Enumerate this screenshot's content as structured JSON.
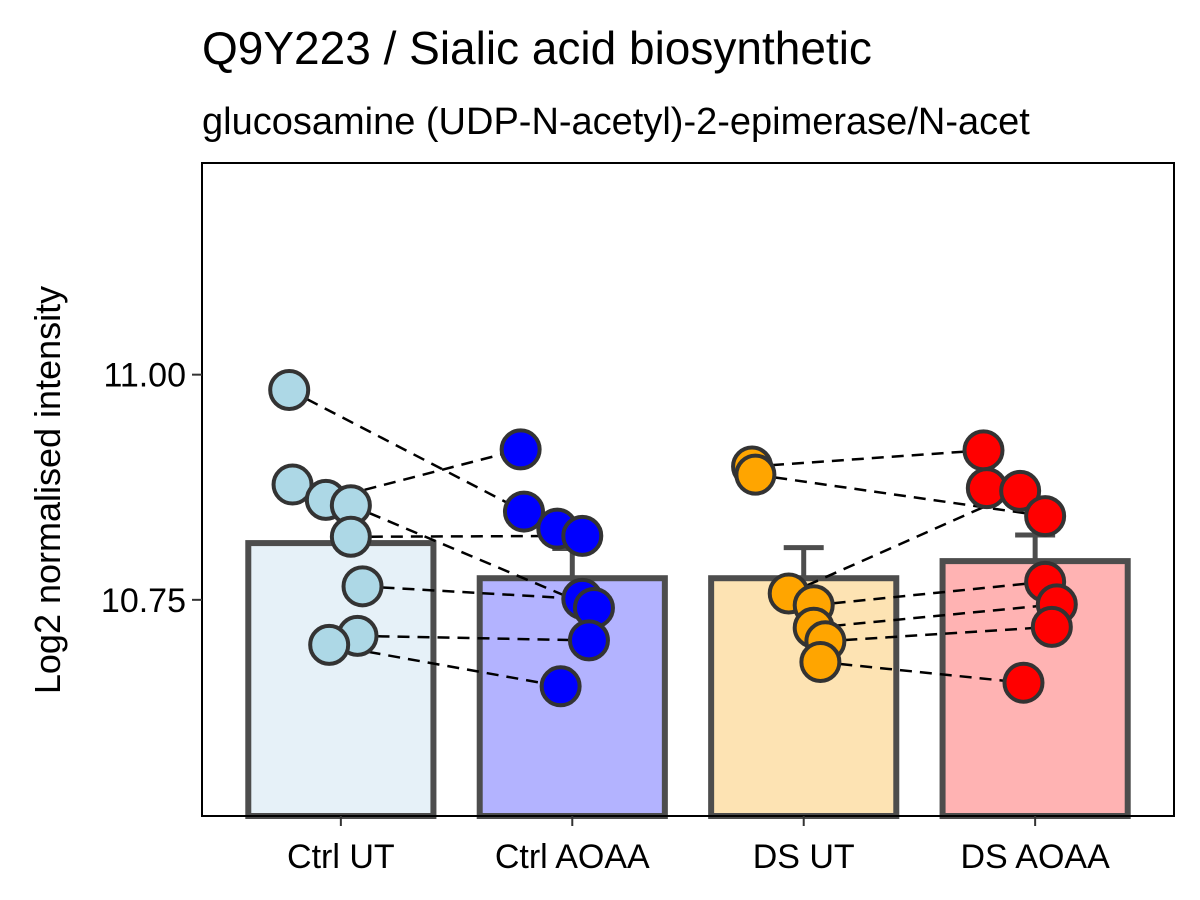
{
  "chart_data": {
    "type": "bar",
    "title": "Q9Y223 / Sialic acid biosynthetic",
    "subtitle": "glucosamine (UDP-N-acetyl)-2-epimerase/N-acet",
    "xlabel": "",
    "ylabel": "Log2 normalised intensity",
    "ylim": [
      10.51,
      11.235
    ],
    "yticks": [
      10.75,
      11.0
    ],
    "ytick_labels": [
      "10.75",
      "11.00"
    ],
    "grid": false,
    "categories": [
      "Ctrl UT",
      "Ctrl AOAA",
      "DS UT",
      "DS AOAA"
    ],
    "values": [
      10.813,
      10.774,
      10.774,
      10.793
    ],
    "error_upper": [
      10.846,
      10.807,
      10.808,
      10.822
    ],
    "bar_fill_colors": [
      "#e6f1f8",
      "#b3b3ff",
      "#fde3b3",
      "#ffb3b3"
    ],
    "point_colors": [
      "#add8e6",
      "#0000ff",
      "#ffa500",
      "#ff0000"
    ],
    "points": [
      [
        10.983,
        10.878,
        10.861,
        10.855,
        10.82,
        10.765,
        10.71,
        10.7
      ],
      [
        10.917,
        10.848,
        10.829,
        10.821,
        10.751,
        10.741,
        10.705,
        10.654
      ],
      [
        10.898,
        10.889,
        10.757,
        10.744,
        10.719,
        10.704,
        10.681
      ],
      [
        10.916,
        10.874,
        10.871,
        10.843,
        10.77,
        10.745,
        10.72,
        10.658
      ]
    ],
    "pairings": [
      [
        [
          10.983,
          10.829
        ],
        [
          10.861,
          10.917
        ],
        [
          10.855,
          10.741
        ],
        [
          10.82,
          10.821
        ],
        [
          10.765,
          10.751
        ],
        [
          10.71,
          10.705
        ],
        [
          10.7,
          10.654
        ]
      ],
      [
        [
          10.898,
          10.916
        ],
        [
          10.889,
          10.843
        ],
        [
          10.757,
          10.871
        ],
        [
          10.744,
          10.77
        ],
        [
          10.719,
          10.745
        ],
        [
          10.704,
          10.72
        ],
        [
          10.681,
          10.658
        ]
      ]
    ]
  }
}
